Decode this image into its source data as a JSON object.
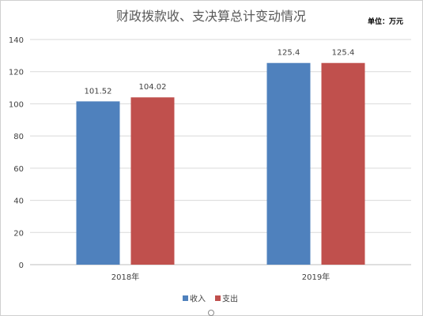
{
  "chart_data": {
    "type": "bar",
    "title": "财政拨款收、支决算总计变动情况",
    "unit_label": "单位：万元",
    "categories": [
      "2018年",
      "2019年"
    ],
    "series": [
      {
        "name": "收入",
        "values": [
          101.52,
          125.4
        ],
        "labels": [
          "101.52",
          "125.4"
        ],
        "color": "#4f81bd"
      },
      {
        "name": "支出",
        "values": [
          104.02,
          125.4
        ],
        "labels": [
          "104.02",
          "125.4"
        ],
        "color": "#c0504d"
      }
    ],
    "ylim": [
      0,
      140
    ],
    "yticks": [
      0,
      20,
      40,
      60,
      80,
      100,
      120,
      140
    ],
    "grid": true,
    "legend_position": "bottom"
  }
}
